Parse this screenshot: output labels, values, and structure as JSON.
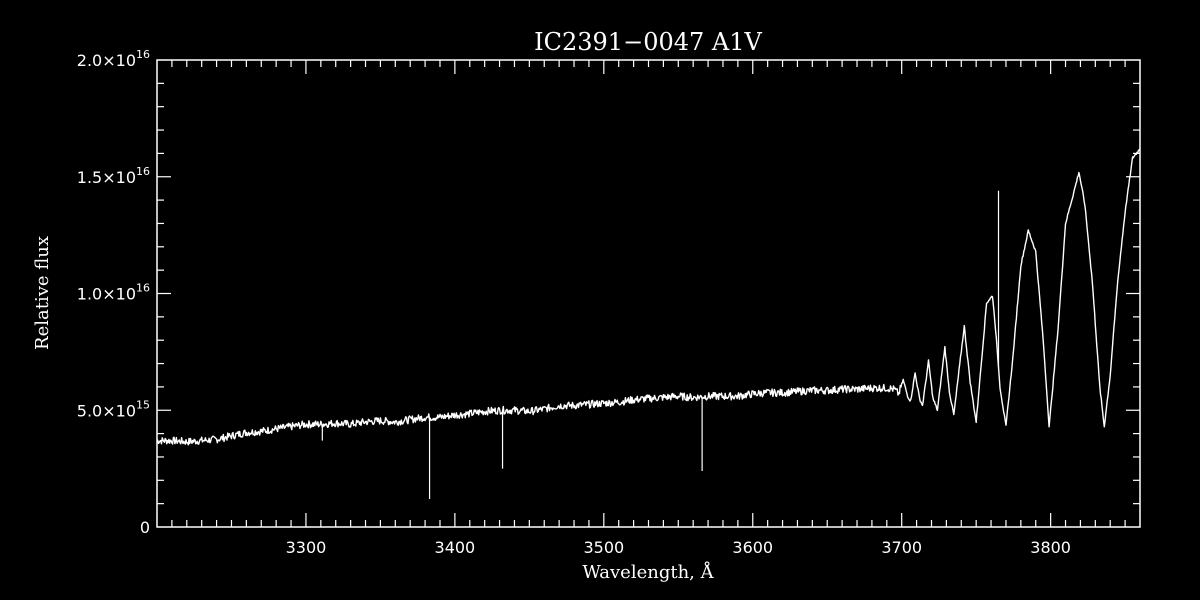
{
  "chart_data": {
    "type": "line",
    "title": "IC2391−0047  A1V",
    "xlabel": "Wavelength, Å",
    "ylabel": "Relative flux",
    "xlim": [
      3200,
      3860
    ],
    "ylim": [
      0,
      2e+16
    ],
    "x_ticks": [
      3300,
      3400,
      3500,
      3600,
      3700,
      3800
    ],
    "y_ticks": [
      {
        "value": 0,
        "mantissa": "0",
        "exponent": ""
      },
      {
        "value": 5000000000000000.0,
        "mantissa": "5.0×10",
        "exponent": "15"
      },
      {
        "value": 1e+16,
        "mantissa": "1.0×10",
        "exponent": "16"
      },
      {
        "value": 1.5e+16,
        "mantissa": "1.5×10",
        "exponent": "16"
      },
      {
        "value": 2e+16,
        "mantissa": "2.0×10",
        "exponent": "16"
      }
    ],
    "grid": false,
    "series": [
      {
        "points": [
          [
            3200,
            3700000000000000.0
          ],
          [
            3210,
            3700000000000000.0
          ],
          [
            3220,
            3650000000000000.0
          ],
          [
            3230,
            3700000000000000.0
          ],
          [
            3240,
            3750000000000000.0
          ],
          [
            3250,
            3900000000000000.0
          ],
          [
            3260,
            4050000000000000.0
          ],
          [
            3270,
            4100000000000000.0
          ],
          [
            3280,
            4200000000000000.0
          ],
          [
            3290,
            4300000000000000.0
          ],
          [
            3300,
            4400000000000000.0
          ],
          [
            3310,
            4400000000000000.0
          ],
          [
            3320,
            4450000000000000.0
          ],
          [
            3330,
            4400000000000000.0
          ],
          [
            3340,
            4500000000000000.0
          ],
          [
            3350,
            4550000000000000.0
          ],
          [
            3360,
            4500000000000000.0
          ],
          [
            3370,
            4600000000000000.0
          ],
          [
            3380,
            4700000000000000.0
          ],
          [
            3390,
            4700000000000000.0
          ],
          [
            3400,
            4800000000000000.0
          ],
          [
            3410,
            4850000000000000.0
          ],
          [
            3420,
            4950000000000000.0
          ],
          [
            3430,
            5000000000000000.0
          ],
          [
            3440,
            5000000000000000.0
          ],
          [
            3450,
            4950000000000000.0
          ],
          [
            3460,
            5050000000000000.0
          ],
          [
            3470,
            5200000000000000.0
          ],
          [
            3480,
            5200000000000000.0
          ],
          [
            3490,
            5250000000000000.0
          ],
          [
            3500,
            5300000000000000.0
          ],
          [
            3510,
            5350000000000000.0
          ],
          [
            3520,
            5450000000000000.0
          ],
          [
            3530,
            5500000000000000.0
          ],
          [
            3540,
            5550000000000000.0
          ],
          [
            3550,
            5600000000000000.0
          ],
          [
            3560,
            5550000000000000.0
          ],
          [
            3570,
            5600000000000000.0
          ],
          [
            3580,
            5600000000000000.0
          ],
          [
            3590,
            5600000000000000.0
          ],
          [
            3600,
            5700000000000000.0
          ],
          [
            3610,
            5750000000000000.0
          ],
          [
            3620,
            5750000000000000.0
          ],
          [
            3630,
            5800000000000000.0
          ],
          [
            3640,
            5850000000000000.0
          ],
          [
            3650,
            5850000000000000.0
          ],
          [
            3660,
            5900000000000000.0
          ],
          [
            3670,
            5900000000000000.0
          ],
          [
            3680,
            5950000000000000.0
          ],
          [
            3690,
            5950000000000000.0
          ],
          [
            3695,
            5900000000000000.0
          ],
          [
            3698,
            5700000000000000.0
          ],
          [
            3701,
            6300000000000000.0
          ],
          [
            3704,
            5600000000000000.0
          ],
          [
            3706,
            5400000000000000.0
          ],
          [
            3709,
            6600000000000000.0
          ],
          [
            3712,
            5500000000000000.0
          ],
          [
            3714,
            5200000000000000.0
          ],
          [
            3718,
            7100000000000000.0
          ],
          [
            3721,
            5500000000000000.0
          ],
          [
            3724,
            5000000000000000.0
          ],
          [
            3729,
            7700000000000000.0
          ],
          [
            3732,
            5800000000000000.0
          ],
          [
            3735,
            4800000000000000.0
          ],
          [
            3742,
            8600000000000000.0
          ],
          [
            3746,
            6200000000000000.0
          ],
          [
            3750,
            4500000000000000.0
          ],
          [
            3757,
            9600000000000000.0
          ],
          [
            3761,
            9900000000000000.0
          ],
          [
            3763,
            8500000000000000.0
          ],
          [
            3766,
            6000000000000000.0
          ],
          [
            3770,
            4300000000000000.0
          ],
          [
            3775,
            7500000000000000.0
          ],
          [
            3780,
            1.12e+16
          ],
          [
            3785,
            1.27e+16
          ],
          [
            3790,
            1.18e+16
          ],
          [
            3795,
            8000000000000000.0
          ],
          [
            3799,
            4300000000000000.0
          ],
          [
            3805,
            8500000000000000.0
          ],
          [
            3810,
            1.3e+16
          ],
          [
            3815,
            1.42e+16
          ],
          [
            3819,
            1.52e+16
          ],
          [
            3823,
            1.38e+16
          ],
          [
            3828,
            1.05e+16
          ],
          [
            3833,
            6000000000000000.0
          ],
          [
            3836,
            4300000000000000.0
          ],
          [
            3840,
            6500000000000000.0
          ],
          [
            3845,
            1.05e+16
          ],
          [
            3850,
            1.35e+16
          ],
          [
            3855,
            1.58e+16
          ],
          [
            3860,
            1.62e+16
          ]
        ]
      }
    ],
    "absorption_spikes": [
      {
        "x": 3311,
        "y_bottom": 3700000000000000.0
      },
      {
        "x": 3383,
        "y_bottom": 1200000000000000.0
      },
      {
        "x": 3432,
        "y_bottom": 2500000000000000.0
      },
      {
        "x": 3566,
        "y_bottom": 2400000000000000.0
      }
    ],
    "emission_spikes": [
      {
        "x": 3765,
        "y_top": 1.44e+16
      }
    ]
  }
}
